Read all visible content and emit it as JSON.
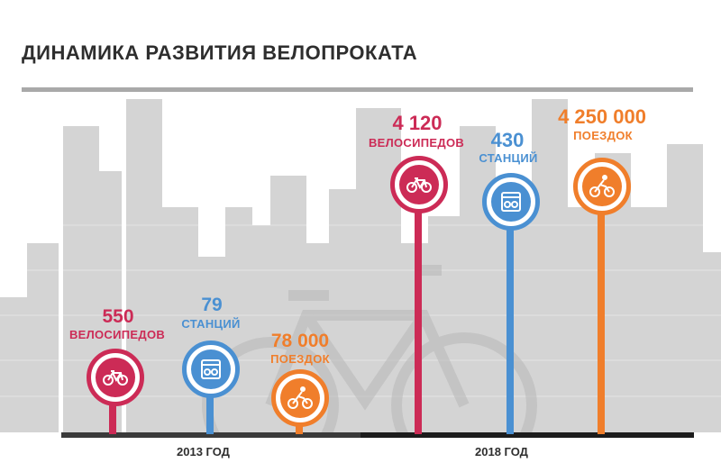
{
  "title": "ДИНАМИКА РАЗВИТИЯ ВЕЛОПРОКАТА",
  "colors": {
    "bikes": "#cc2b56",
    "stations": "#4a90d2",
    "trips": "#f07e2b",
    "skyline": "#d4d4d4",
    "title_rule": "#a9a9a9",
    "baseline": "#3a3a3a"
  },
  "years": [
    {
      "label": "2013 ГОД",
      "items": [
        {
          "value": "550",
          "label": "ВЕЛОСИПЕДОВ",
          "icon": "bicycle-icon"
        },
        {
          "value": "79",
          "label": "СТАНЦИЙ",
          "icon": "bike-station-icon"
        },
        {
          "value": "78 000",
          "label": "ПОЕЗДОК",
          "icon": "cyclist-icon"
        }
      ]
    },
    {
      "label": "2018 ГОД",
      "items": [
        {
          "value": "4 120",
          "label": "ВЕЛОСИПЕДОВ",
          "icon": "bicycle-icon"
        },
        {
          "value": "430",
          "label": "СТАНЦИЙ",
          "icon": "bike-station-icon"
        },
        {
          "value": "4 250 000",
          "label": "ПОЕЗДОК",
          "icon": "cyclist-icon"
        }
      ]
    }
  ]
}
